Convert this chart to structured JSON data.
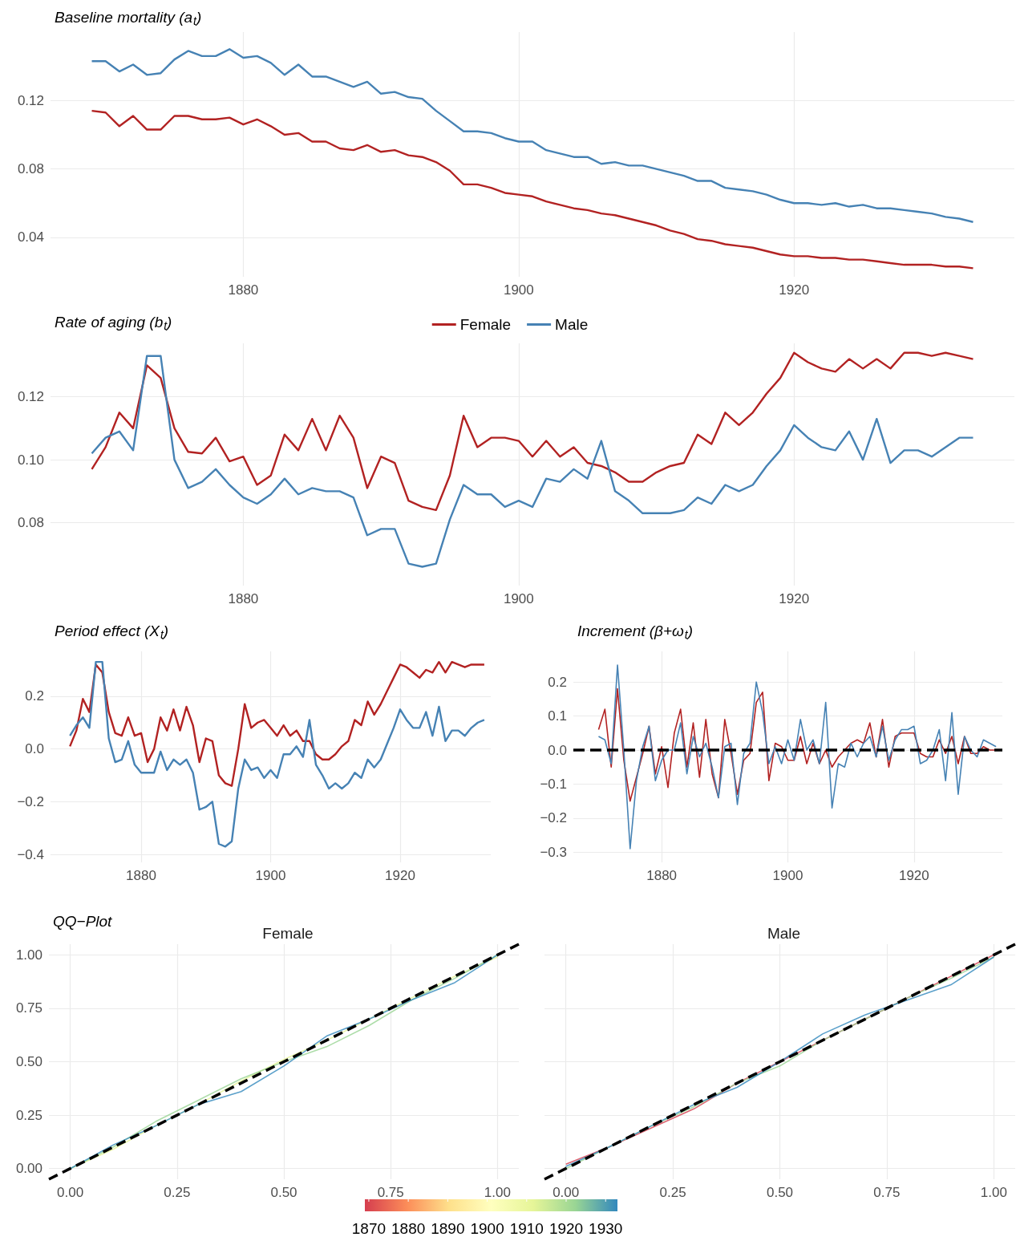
{
  "chart_data": [
    {
      "type": "line",
      "title": "Baseline mortality (a$_{t}$)",
      "x": [
        1869,
        1870,
        1871,
        1872,
        1873,
        1874,
        1875,
        1876,
        1877,
        1878,
        1879,
        1880,
        1881,
        1882,
        1883,
        1884,
        1885,
        1886,
        1887,
        1888,
        1889,
        1890,
        1891,
        1892,
        1893,
        1894,
        1895,
        1896,
        1897,
        1898,
        1899,
        1900,
        1901,
        1902,
        1903,
        1904,
        1905,
        1906,
        1907,
        1908,
        1909,
        1910,
        1911,
        1912,
        1913,
        1914,
        1915,
        1916,
        1917,
        1918,
        1919,
        1920,
        1921,
        1922,
        1923,
        1924,
        1925,
        1926,
        1927,
        1928,
        1929,
        1930,
        1931,
        1932,
        1933
      ],
      "series": [
        {
          "color": "#b22222",
          "values": [
            0.114,
            0.113,
            0.105,
            0.111,
            0.103,
            0.103,
            0.111,
            0.111,
            0.109,
            0.109,
            0.11,
            0.106,
            0.109,
            0.105,
            0.1,
            0.101,
            0.096,
            0.096,
            0.092,
            0.091,
            0.094,
            0.09,
            0.091,
            0.088,
            0.087,
            0.084,
            0.079,
            0.071,
            0.071,
            0.069,
            0.066,
            0.065,
            0.064,
            0.061,
            0.059,
            0.057,
            0.056,
            0.054,
            0.053,
            0.051,
            0.049,
            0.047,
            0.044,
            0.042,
            0.039,
            0.038,
            0.036,
            0.035,
            0.034,
            0.032,
            0.03,
            0.029,
            0.029,
            0.028,
            0.028,
            0.027,
            0.027,
            0.026,
            0.025,
            0.024,
            0.024,
            0.024,
            0.023,
            0.023,
            0.022
          ]
        },
        {
          "color": "#4682b4",
          "values": [
            0.143,
            0.143,
            0.137,
            0.141,
            0.135,
            0.136,
            0.144,
            0.149,
            0.146,
            0.146,
            0.15,
            0.145,
            0.146,
            0.142,
            0.135,
            0.141,
            0.134,
            0.134,
            0.131,
            0.128,
            0.131,
            0.124,
            0.125,
            0.122,
            0.121,
            0.114,
            0.108,
            0.102,
            0.102,
            0.101,
            0.098,
            0.096,
            0.096,
            0.091,
            0.089,
            0.087,
            0.087,
            0.083,
            0.084,
            0.082,
            0.082,
            0.08,
            0.078,
            0.076,
            0.073,
            0.073,
            0.069,
            0.068,
            0.067,
            0.065,
            0.062,
            0.06,
            0.06,
            0.059,
            0.06,
            0.058,
            0.059,
            0.057,
            0.057,
            0.056,
            0.055,
            0.054,
            0.052,
            0.051,
            0.049
          ]
        }
      ],
      "xlim": [
        1866,
        1936
      ],
      "xticks": [
        1880,
        1900,
        1920
      ],
      "ylim": [
        0.017,
        0.16
      ],
      "yticks": [
        0.04,
        0.08,
        0.12
      ],
      "grid": true
    },
    {
      "type": "line",
      "title": "Rate of aging (b$_{t}$)",
      "legend": "top",
      "x": [
        1869,
        1870,
        1871,
        1872,
        1873,
        1874,
        1875,
        1876,
        1877,
        1878,
        1879,
        1880,
        1881,
        1882,
        1883,
        1884,
        1885,
        1886,
        1887,
        1888,
        1889,
        1890,
        1891,
        1892,
        1893,
        1894,
        1895,
        1896,
        1897,
        1898,
        1899,
        1900,
        1901,
        1902,
        1903,
        1904,
        1905,
        1906,
        1907,
        1908,
        1909,
        1910,
        1911,
        1912,
        1913,
        1914,
        1915,
        1916,
        1917,
        1918,
        1919,
        1920,
        1921,
        1922,
        1923,
        1924,
        1925,
        1926,
        1927,
        1928,
        1929,
        1930,
        1931,
        1932,
        1933
      ],
      "series": [
        {
          "name": "Female",
          "color": "#b22222",
          "values": [
            0.097,
            0.104,
            0.115,
            0.11,
            0.13,
            0.126,
            0.11,
            0.1025,
            0.102,
            0.107,
            0.0995,
            0.101,
            0.092,
            0.095,
            0.108,
            0.103,
            0.113,
            0.103,
            0.114,
            0.107,
            0.091,
            0.101,
            0.099,
            0.087,
            0.085,
            0.084,
            0.095,
            0.114,
            0.104,
            0.107,
            0.107,
            0.106,
            0.101,
            0.106,
            0.101,
            0.104,
            0.099,
            0.098,
            0.096,
            0.093,
            0.093,
            0.096,
            0.098,
            0.099,
            0.108,
            0.105,
            0.115,
            0.111,
            0.115,
            0.121,
            0.126,
            0.134,
            0.131,
            0.129,
            0.128,
            0.132,
            0.129,
            0.132,
            0.129,
            0.134,
            0.134,
            0.133,
            0.134,
            0.133,
            0.132
          ]
        },
        {
          "name": "Male",
          "color": "#4682b4",
          "values": [
            0.102,
            0.107,
            0.109,
            0.103,
            0.133,
            0.133,
            0.1,
            0.091,
            0.093,
            0.097,
            0.092,
            0.088,
            0.086,
            0.089,
            0.094,
            0.089,
            0.091,
            0.09,
            0.09,
            0.088,
            0.076,
            0.078,
            0.078,
            0.067,
            0.066,
            0.067,
            0.081,
            0.092,
            0.089,
            0.089,
            0.085,
            0.087,
            0.085,
            0.094,
            0.093,
            0.097,
            0.094,
            0.106,
            0.09,
            0.087,
            0.083,
            0.083,
            0.083,
            0.084,
            0.088,
            0.086,
            0.092,
            0.09,
            0.092,
            0.098,
            0.103,
            0.111,
            0.107,
            0.104,
            0.103,
            0.109,
            0.1,
            0.113,
            0.099,
            0.103,
            0.103,
            0.101,
            0.104,
            0.107,
            0.107
          ]
        }
      ],
      "xlim": [
        1866,
        1936
      ],
      "xticks": [
        1880,
        1900,
        1920
      ],
      "ylim": [
        0.06,
        0.137
      ],
      "yticks": [
        {
          "value": 0.08,
          "label": "0.08"
        },
        {
          "value": 0.1,
          "label": "0.10"
        },
        {
          "value": 0.12,
          "label": "0.12"
        }
      ],
      "grid": true
    },
    {
      "type": "line",
      "title": "Period effect (X$_{t}$)",
      "x": [
        1869,
        1870,
        1871,
        1872,
        1873,
        1874,
        1875,
        1876,
        1877,
        1878,
        1879,
        1880,
        1881,
        1882,
        1883,
        1884,
        1885,
        1886,
        1887,
        1888,
        1889,
        1890,
        1891,
        1892,
        1893,
        1894,
        1895,
        1896,
        1897,
        1898,
        1899,
        1900,
        1901,
        1902,
        1903,
        1904,
        1905,
        1906,
        1907,
        1908,
        1909,
        1910,
        1911,
        1912,
        1913,
        1914,
        1915,
        1916,
        1917,
        1918,
        1919,
        1920,
        1921,
        1922,
        1923,
        1924,
        1925,
        1926,
        1927,
        1928,
        1929,
        1930,
        1931,
        1932,
        1933
      ],
      "series": [
        {
          "color": "#b22222",
          "values": [
            0.01,
            0.07,
            0.19,
            0.14,
            0.32,
            0.29,
            0.14,
            0.06,
            0.05,
            0.12,
            0.05,
            0.06,
            -0.05,
            0.0,
            0.12,
            0.07,
            0.15,
            0.07,
            0.16,
            0.09,
            -0.05,
            0.04,
            0.03,
            -0.1,
            -0.13,
            -0.14,
            0.0,
            0.17,
            0.08,
            0.1,
            0.11,
            0.08,
            0.05,
            0.09,
            0.05,
            0.07,
            0.03,
            0.03,
            -0.02,
            -0.04,
            -0.04,
            -0.02,
            0.01,
            0.03,
            0.11,
            0.09,
            0.18,
            0.13,
            0.17,
            0.22,
            0.27,
            0.32,
            0.31,
            0.29,
            0.27,
            0.3,
            0.29,
            0.33,
            0.29,
            0.33,
            0.32,
            0.31,
            0.32,
            0.32,
            0.32
          ]
        },
        {
          "color": "#4682b4",
          "values": [
            0.05,
            0.09,
            0.12,
            0.08,
            0.33,
            0.33,
            0.04,
            -0.05,
            -0.04,
            0.03,
            -0.06,
            -0.09,
            -0.09,
            -0.09,
            -0.01,
            -0.08,
            -0.04,
            -0.06,
            -0.04,
            -0.09,
            -0.23,
            -0.22,
            -0.2,
            -0.36,
            -0.37,
            -0.35,
            -0.15,
            -0.04,
            -0.08,
            -0.07,
            -0.11,
            -0.08,
            -0.11,
            -0.02,
            -0.02,
            0.01,
            -0.03,
            0.11,
            -0.06,
            -0.1,
            -0.15,
            -0.13,
            -0.15,
            -0.13,
            -0.09,
            -0.11,
            -0.04,
            -0.07,
            -0.04,
            0.02,
            0.08,
            0.15,
            0.11,
            0.08,
            0.08,
            0.14,
            0.05,
            0.16,
            0.03,
            0.07,
            0.07,
            0.05,
            0.08,
            0.1,
            0.11
          ]
        }
      ],
      "xlim": [
        1866,
        1934
      ],
      "xticks": [
        1880,
        1900,
        1920
      ],
      "ylim": [
        -0.43,
        0.37
      ],
      "yticks": [
        {
          "value": -0.4,
          "label": "−0.4"
        },
        {
          "value": -0.2,
          "label": "−0.2"
        },
        {
          "value": 0,
          "label": "0.0"
        },
        {
          "value": 0.2,
          "label": "0.2"
        }
      ],
      "grid": true
    },
    {
      "type": "line",
      "title": "Increment (β+ω$_{t}$)",
      "x": [
        1870,
        1871,
        1872,
        1873,
        1874,
        1875,
        1876,
        1877,
        1878,
        1879,
        1880,
        1881,
        1882,
        1883,
        1884,
        1885,
        1886,
        1887,
        1888,
        1889,
        1890,
        1891,
        1892,
        1893,
        1894,
        1895,
        1896,
        1897,
        1898,
        1899,
        1900,
        1901,
        1902,
        1903,
        1904,
        1905,
        1906,
        1907,
        1908,
        1909,
        1910,
        1911,
        1912,
        1913,
        1914,
        1915,
        1916,
        1917,
        1918,
        1919,
        1920,
        1921,
        1922,
        1923,
        1924,
        1925,
        1926,
        1927,
        1928,
        1929,
        1930,
        1931,
        1932,
        1933
      ],
      "series": [
        {
          "color": "#b22222",
          "values": [
            0.06,
            0.12,
            -0.05,
            0.18,
            -0.03,
            -0.15,
            -0.08,
            -0.01,
            0.07,
            -0.07,
            0.01,
            -0.11,
            0.05,
            0.12,
            -0.05,
            0.08,
            -0.08,
            0.09,
            -0.07,
            -0.14,
            0.09,
            -0.01,
            -0.13,
            -0.03,
            -0.01,
            0.14,
            0.17,
            -0.09,
            0.02,
            0.01,
            -0.03,
            -0.03,
            0.04,
            -0.04,
            0.02,
            -0.04,
            0.0,
            -0.05,
            -0.02,
            0.0,
            0.02,
            0.03,
            0.02,
            0.08,
            -0.02,
            0.09,
            -0.05,
            0.04,
            0.05,
            0.05,
            0.05,
            -0.01,
            -0.02,
            -0.02,
            0.03,
            -0.01,
            0.04,
            -0.04,
            0.04,
            -0.01,
            -0.01,
            0.01,
            0.0,
            0.0
          ]
        },
        {
          "color": "#4682b4",
          "values": [
            0.04,
            0.03,
            -0.04,
            0.25,
            0.0,
            -0.29,
            -0.09,
            0.01,
            0.07,
            -0.09,
            -0.03,
            0.0,
            0.0,
            0.08,
            -0.07,
            0.04,
            -0.02,
            0.02,
            -0.05,
            -0.14,
            0.01,
            0.02,
            -0.16,
            -0.01,
            0.02,
            0.2,
            0.11,
            -0.04,
            0.01,
            -0.04,
            0.03,
            -0.03,
            0.09,
            0.0,
            0.03,
            -0.04,
            0.14,
            -0.17,
            -0.04,
            -0.05,
            0.02,
            -0.02,
            0.02,
            0.04,
            -0.02,
            0.07,
            -0.03,
            0.03,
            0.06,
            0.06,
            0.07,
            -0.04,
            -0.03,
            0.0,
            0.06,
            -0.09,
            0.11,
            -0.13,
            0.04,
            0.0,
            -0.02,
            0.03,
            0.02,
            0.01
          ]
        }
      ],
      "ref_lines": [
        {
          "axis": "y",
          "value": 0,
          "color": "#000000",
          "line_style": "dashed"
        }
      ],
      "xlim": [
        1866,
        1934
      ],
      "xticks": [
        1880,
        1900,
        1920
      ],
      "ylim": [
        -0.33,
        0.29
      ],
      "yticks": [
        {
          "value": -0.3,
          "label": "−0.3"
        },
        {
          "value": -0.2,
          "label": "−0.2"
        },
        {
          "value": -0.1,
          "label": "−0.1"
        },
        {
          "value": 0,
          "label": "0.0"
        },
        {
          "value": 0.1,
          "label": "0.1"
        },
        {
          "value": 0.2,
          "label": "0.2"
        }
      ],
      "grid": true
    },
    {
      "type": "line",
      "title": "QQ−Plot",
      "subtitle": "Female",
      "x": [
        0,
        0.1,
        0.2,
        0.3,
        0.4,
        0.5,
        0.6,
        0.7,
        0.8,
        0.9,
        1
      ],
      "series": [
        {
          "color": "#e6f598",
          "values": [
            0,
            0.09,
            0.2,
            0.3,
            0.41,
            0.51,
            0.6,
            0.7,
            0.8,
            0.9,
            0.99
          ]
        },
        {
          "color": "#99d594",
          "values": [
            0,
            0.1,
            0.22,
            0.32,
            0.42,
            0.5,
            0.57,
            0.67,
            0.79,
            0.89,
            1
          ]
        },
        {
          "color": "#3288bd",
          "values": [
            0,
            0.11,
            0.2,
            0.3,
            0.36,
            0.48,
            0.62,
            0.7,
            0.79,
            0.87,
            1
          ]
        },
        {
          "color": "#000000",
          "line_style": "dashed",
          "x": [
            -0.05,
            0.25,
            0.5,
            0.75,
            1.05
          ],
          "values": [
            -0.05,
            0.25,
            0.5,
            0.75,
            1.05
          ]
        }
      ],
      "clim": [
        1869,
        1933
      ],
      "cticks": [
        1870,
        1880,
        1890,
        1900,
        1910,
        1920,
        1930
      ],
      "xlim": [
        -0.05,
        1.05
      ],
      "xticks": [
        {
          "value": 0,
          "label": "0.00"
        },
        {
          "value": 0.25,
          "label": "0.25"
        },
        {
          "value": 0.5,
          "label": "0.50"
        },
        {
          "value": 0.75,
          "label": "0.75"
        },
        {
          "value": 1,
          "label": "1.00"
        }
      ],
      "ylim": [
        -0.05,
        1.05
      ],
      "yticks": [
        {
          "value": 0,
          "label": "0.00"
        },
        {
          "value": 0.25,
          "label": "0.25"
        },
        {
          "value": 0.5,
          "label": "0.50"
        },
        {
          "value": 0.75,
          "label": "0.75"
        },
        {
          "value": 1,
          "label": "1.00"
        }
      ],
      "grid": true
    },
    {
      "type": "line",
      "subtitle": "Male",
      "x": [
        0,
        0.1,
        0.2,
        0.3,
        0.4,
        0.5,
        0.6,
        0.7,
        0.8,
        0.9,
        1
      ],
      "series": [
        {
          "color": "#d53e4f",
          "values": [
            0.02,
            0.1,
            0.19,
            0.28,
            0.4,
            0.5,
            0.6,
            0.7,
            0.8,
            0.9,
            1
          ]
        },
        {
          "color": "#99d594",
          "values": [
            0,
            0.1,
            0.2,
            0.29,
            0.4,
            0.48,
            0.6,
            0.7,
            0.8,
            0.89,
            0.99
          ]
        },
        {
          "color": "#3288bd",
          "values": [
            0.01,
            0.1,
            0.2,
            0.3,
            0.38,
            0.5,
            0.63,
            0.72,
            0.79,
            0.86,
            0.99
          ]
        },
        {
          "color": "#000000",
          "line_style": "dashed",
          "x": [
            -0.05,
            0.25,
            0.5,
            0.75,
            1.05
          ],
          "values": [
            -0.05,
            0.25,
            0.5,
            0.75,
            1.05
          ]
        }
      ],
      "xlim": [
        -0.05,
        1.05
      ],
      "xticks": [
        {
          "value": 0,
          "label": "0.00"
        },
        {
          "value": 0.25,
          "label": "0.25"
        },
        {
          "value": 0.5,
          "label": "0.50"
        },
        {
          "value": 0.75,
          "label": "0.75"
        },
        {
          "value": 1,
          "label": "1.00"
        }
      ],
      "ylim": [
        -0.05,
        1.05
      ],
      "yticks": [
        0,
        0.25,
        0.5,
        0.75,
        1
      ],
      "tick_labels": "x",
      "grid": true
    }
  ]
}
